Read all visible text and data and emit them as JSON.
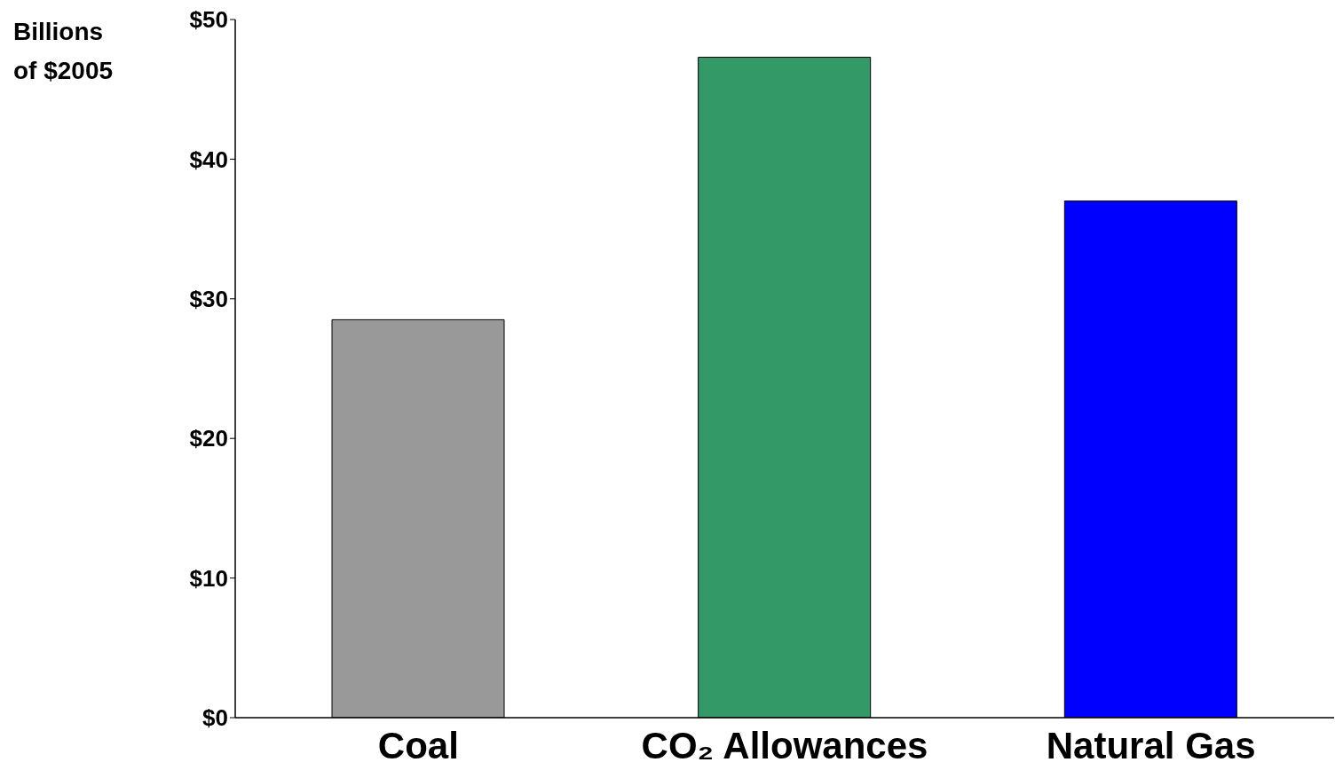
{
  "chart_data": {
    "type": "bar",
    "ylabel": "Billions of $2005",
    "categories": [
      "Coal",
      "CO₂ Allowances",
      "Natural Gas"
    ],
    "values": [
      28.5,
      47.3,
      37.0
    ],
    "colors": [
      "#999999",
      "#339966",
      "#0000ff"
    ],
    "ylim": [
      0,
      50
    ],
    "yticks": [
      {
        "value": 0,
        "label": "$0"
      },
      {
        "value": 10,
        "label": "$10"
      },
      {
        "value": 20,
        "label": "$20"
      },
      {
        "value": 30,
        "label": "$30"
      },
      {
        "value": 40,
        "label": "$40"
      },
      {
        "value": 50,
        "label": "$50"
      }
    ],
    "grid": false,
    "legend": false
  }
}
